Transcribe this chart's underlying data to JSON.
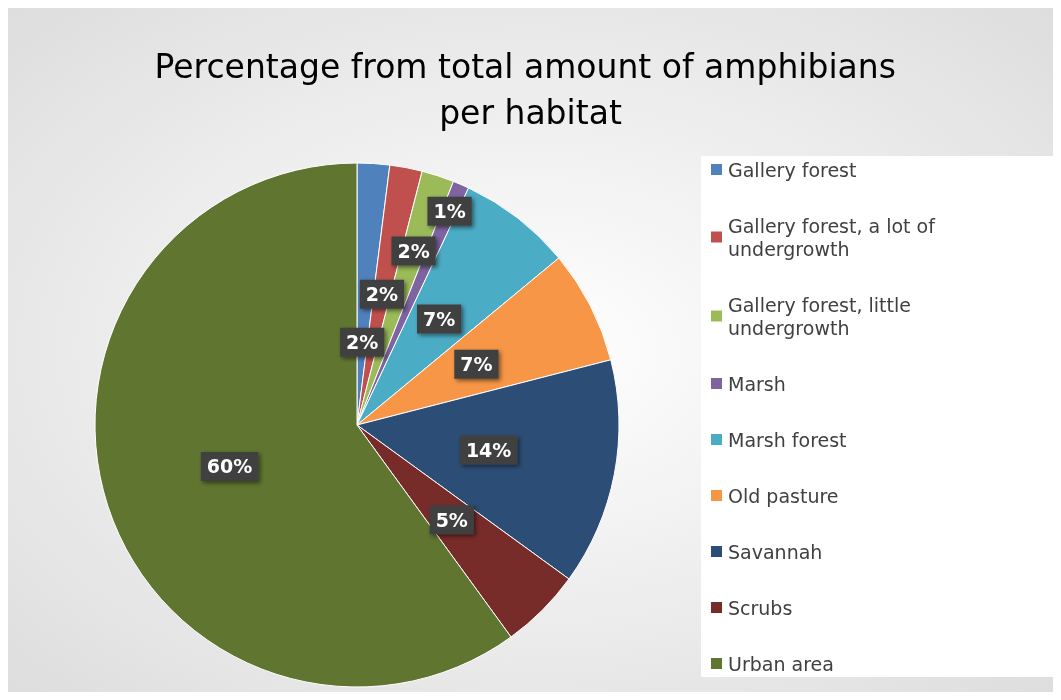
{
  "chart_data": {
    "type": "pie",
    "title": "Percentage from total amount of amphibians per habitat",
    "categories": [
      "Gallery forest",
      "Gallery forest, a lot of undergrowth",
      "Gallery forest, little undergrowth",
      "Marsh",
      "Marsh forest",
      "Old pasture",
      "Savannah",
      "Scrubs",
      "Urban area"
    ],
    "values": [
      2,
      2,
      2,
      1,
      7,
      7,
      14,
      5,
      60
    ],
    "colors": [
      "#4f81bd",
      "#c0504d",
      "#9bbb59",
      "#8064a2",
      "#4bacc6",
      "#f79646",
      "#2c4d75",
      "#772c2a",
      "#5f7530"
    ],
    "value_labels": [
      "2%",
      "2%",
      "2%",
      "1%",
      "7%",
      "7%",
      "14%",
      "5%",
      "60%"
    ],
    "legend": "right"
  }
}
